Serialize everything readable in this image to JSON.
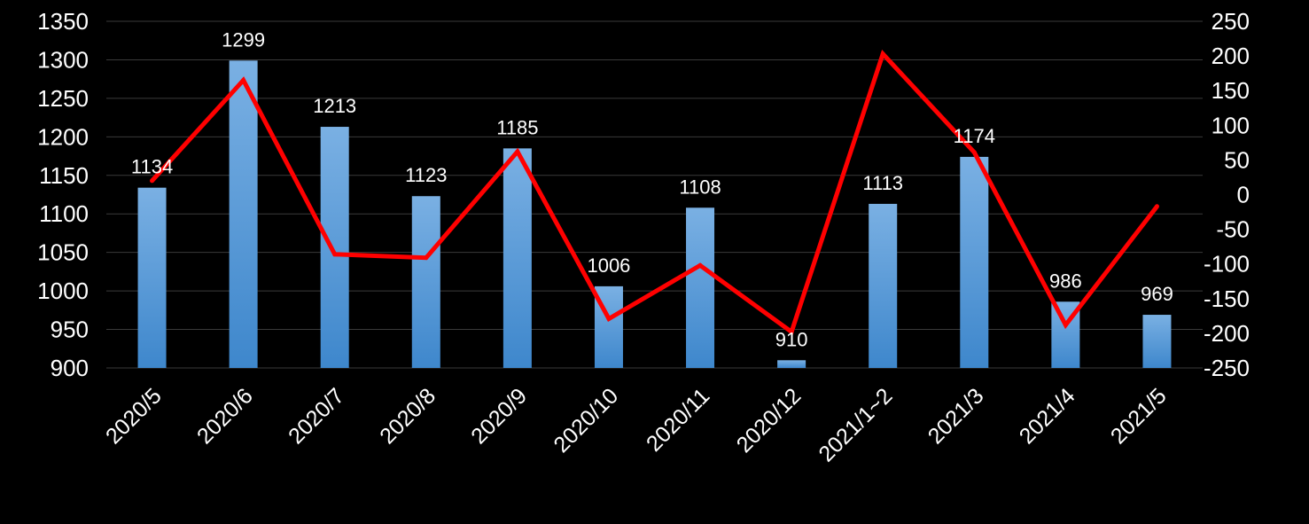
{
  "chart_data": {
    "type": "bar",
    "categories": [
      "2020/5",
      "2020/6",
      "2020/7",
      "2020/8",
      "2020/9",
      "2020/10",
      "2020/11",
      "2020/12",
      "2021/1~2",
      "2021/3",
      "2021/4",
      "2021/5"
    ],
    "series": [
      {
        "chart_type": "bar",
        "axis": "left",
        "values": [
          1134,
          1299,
          1213,
          1123,
          1185,
          1006,
          1108,
          910,
          1113,
          1174,
          986,
          969
        ],
        "data_labels": [
          "1134",
          "1299",
          "1213",
          "1123",
          "1185",
          "1006",
          "1108",
          "910",
          "1113",
          "1174",
          "986",
          "969"
        ],
        "color": "#5b9bd5"
      },
      {
        "chart_type": "line",
        "axis": "right",
        "values": [
          20,
          165,
          -86,
          -91,
          62,
          -179,
          -102,
          -198,
          203,
          61,
          -188,
          -17
        ],
        "color": "#ff0000"
      }
    ],
    "y_left": {
      "ylim": [
        900,
        1350
      ],
      "ticks": [
        "900",
        "950",
        "1000",
        "1050",
        "1100",
        "1150",
        "1200",
        "1250",
        "1300",
        "1350"
      ]
    },
    "y_right": {
      "ylim": [
        -250,
        250
      ],
      "ticks": [
        "-250",
        "-200",
        "-150",
        "-100",
        "-50",
        "0",
        "50",
        "100",
        "150",
        "200",
        "250"
      ]
    },
    "title": "",
    "xlabel": "",
    "ylabel": "",
    "grid": true,
    "legend": "none",
    "colors": {
      "background": "#000000",
      "grid": "#3a3a3a",
      "text": "#ffffff",
      "bar_top": "#7ab0e3",
      "bar_bottom": "#3e87cc",
      "line": "#ff0000"
    }
  }
}
